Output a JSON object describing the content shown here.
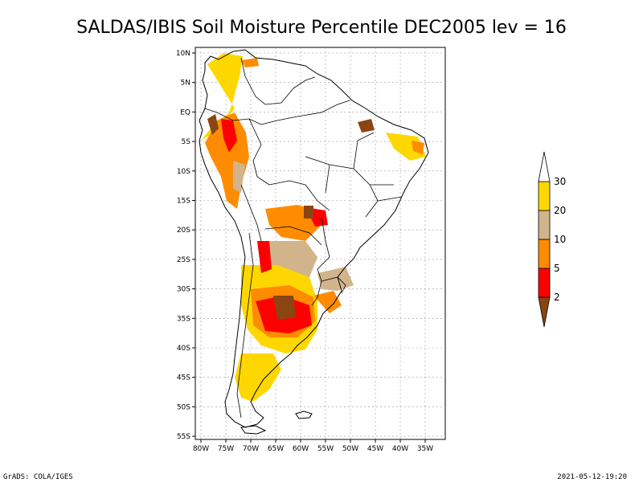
{
  "title": "SALDAS/IBIS Soil Moisture Percentile DEC2005 lev = 16",
  "footer_left": "GrADS: COLA/IGES",
  "footer_right": "2021-05-12-19:20",
  "lat_labels": [
    "10N",
    "5N",
    "EQ",
    "5S",
    "10S",
    "15S",
    "20S",
    "25S",
    "30S",
    "35S",
    "40S",
    "45S",
    "50S",
    "55S"
  ],
  "lon_labels": [
    "80W",
    "75W",
    "70W",
    "65W",
    "60W",
    "55W",
    "50W",
    "45W",
    "40W",
    "35W"
  ],
  "legend": {
    "labels": [
      "2",
      "5",
      "10",
      "20",
      "30"
    ],
    "colors": [
      "#8b4513",
      "#ff0000",
      "#ff8c00",
      "#d2b48c",
      "#ffd700",
      "#ffffff"
    ]
  },
  "colors": {
    "very_dry": "#8b4513",
    "dry": "#ff0000",
    "moderate": "#ff8c00",
    "low": "#d2b48c",
    "below_normal": "#ffd700"
  }
}
